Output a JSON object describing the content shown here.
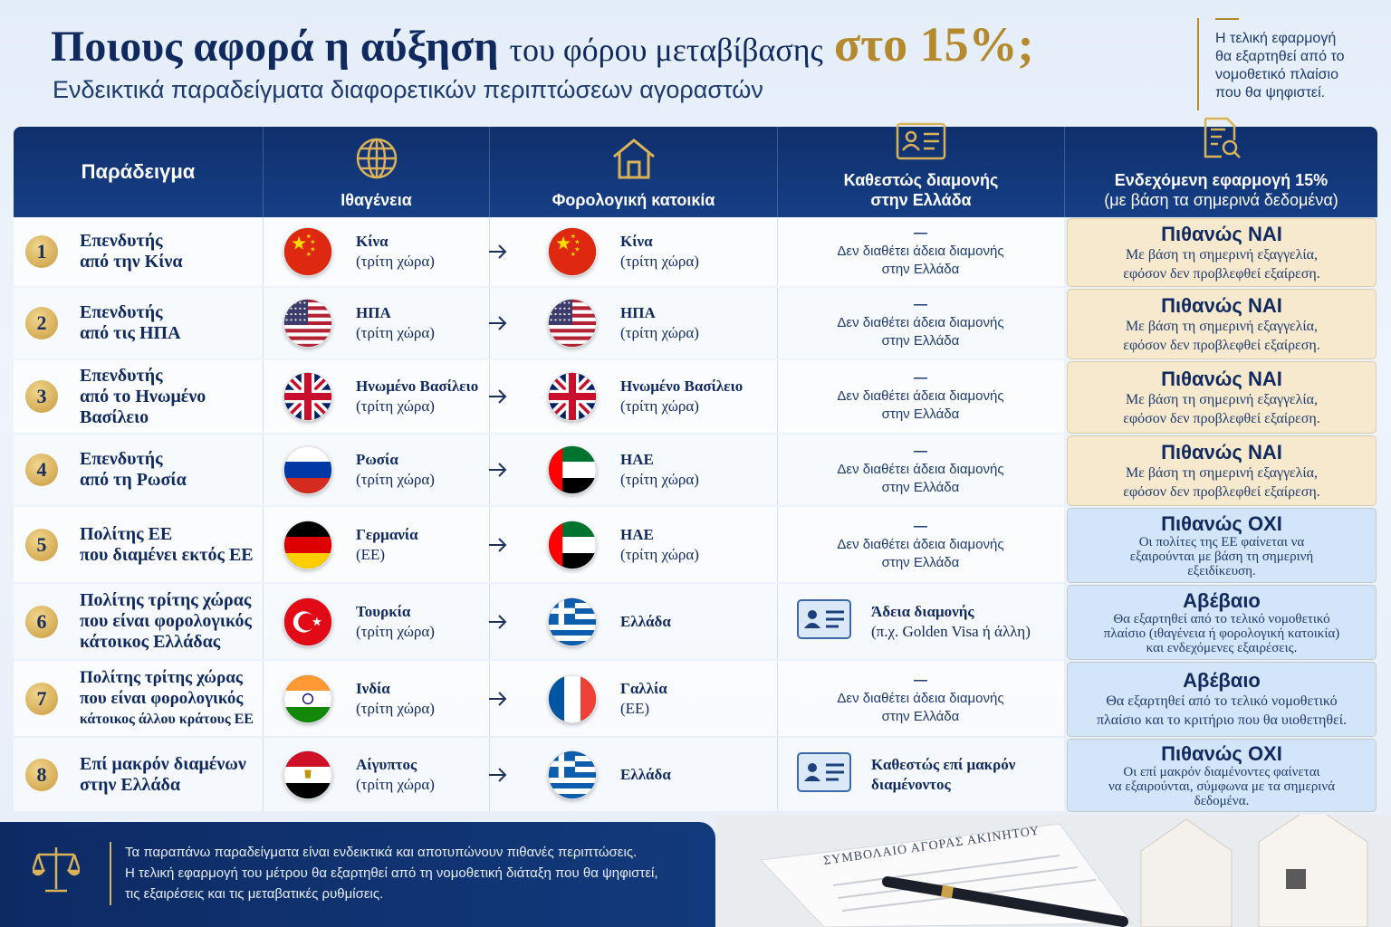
{
  "header": {
    "title_parts": [
      "Ποιους αφορά η αύξηση",
      "του φόρου μεταβίβασης",
      "στο 15%;"
    ],
    "subtitle": "Ενδεικτικά παραδείγματα διαφορετικών περιπτώσεων αγοραστών",
    "note": [
      "Η τελική εφαρμογή",
      "θα εξαρτηθεί από το",
      "νομοθετικό πλαίσιο",
      "που θα ψηφιστεί."
    ]
  },
  "table": {
    "columns": [
      [
        "Παράδειγμα"
      ],
      [
        "Ιθαγένεια"
      ],
      [
        "Φορολογική κατοικία"
      ],
      [
        "Καθεστώς διαμονής",
        "στην Ελλάδα"
      ],
      [
        "Ενδεχόμενη εφαρμογή 15%",
        "(με βάση τα σημερινά δεδομένα)"
      ]
    ],
    "rows": [
      {
        "number": 1,
        "example": [
          "Επενδυτής",
          "από την Κίνα"
        ],
        "nationality": {
          "country": "Κίνα",
          "status": "(τρίτη χώρα)"
        },
        "tax_residence": {
          "country": "Κίνα",
          "status": "(τρίτη χώρα)"
        },
        "residency": {
          "dash": "—",
          "text": [
            "Δεν διαθέτει άδεια διαμονής",
            "στην Ελλάδα"
          ]
        },
        "outcome": {
          "verdict": "Πιθανώς ΝΑΙ",
          "text": [
            "Με βάση τη σημερινή εξαγγελία,",
            "εφόσον δεν προβλεφθεί εξαίρεση."
          ],
          "color": "#f6e9cd"
        }
      },
      {
        "number": 2,
        "example": [
          "Επενδυτής",
          "από τις ΗΠΑ"
        ],
        "nationality": {
          "country": "ΗΠΑ",
          "status": "(τρίτη χώρα)"
        },
        "tax_residence": {
          "country": "ΗΠΑ",
          "status": "(τρίτη χώρα)"
        },
        "residency": {
          "dash": "—",
          "text": [
            "Δεν διαθέτει άδεια διαμονής",
            "στην Ελλάδα"
          ]
        },
        "outcome": {
          "verdict": "Πιθανώς ΝΑΙ",
          "text": [
            "Με βάση τη σημερινή εξαγγελία,",
            "εφόσον δεν προβλεφθεί εξαίρεση."
          ],
          "color": "#f6e9cd"
        }
      },
      {
        "number": 3,
        "example": [
          "Επενδυτής",
          "από το Ηνωμένο",
          "Βασίλειο"
        ],
        "nationality": {
          "country": "Ηνωμένο Βασίλειο",
          "status": "(τρίτη χώρα)"
        },
        "tax_residence": {
          "country": "Ηνωμένο Βασίλειο",
          "status": "(τρίτη χώρα)"
        },
        "residency": {
          "dash": "—",
          "text": [
            "Δεν διαθέτει άδεια διαμονής",
            "στην Ελλάδα"
          ]
        },
        "outcome": {
          "verdict": "Πιθανώς ΝΑΙ",
          "text": [
            "Με βάση τη σημερινή εξαγγελία,",
            "εφόσον δεν προβλεφθεί εξαίρεση."
          ],
          "color": "#f6e9cd"
        }
      },
      {
        "number": 4,
        "example": [
          "Επενδυτής",
          "από τη Ρωσία"
        ],
        "nationality": {
          "country": "Ρωσία",
          "status": "(τρίτη χώρα)"
        },
        "tax_residence": {
          "country": "ΗΑΕ",
          "status": "(τρίτη χώρα)"
        },
        "residency": {
          "dash": "—",
          "text": [
            "Δεν διαθέτει άδεια διαμονής",
            "στην Ελλάδα"
          ]
        },
        "outcome": {
          "verdict": "Πιθανώς ΝΑΙ",
          "text": [
            "Με βάση τη σημερινή εξαγγελία,",
            "εφόσον δεν προβλεφθεί εξαίρεση."
          ],
          "color": "#f6e9cd"
        }
      },
      {
        "number": 5,
        "example": [
          "Πολίτης ΕΕ",
          "που διαμένει εκτός ΕΕ"
        ],
        "nationality": {
          "country": "Γερμανία",
          "status": "(ΕΕ)"
        },
        "tax_residence": {
          "country": "ΗΑΕ",
          "status": "(τρίτη χώρα)"
        },
        "residency": {
          "dash": "—",
          "text": [
            "Δεν διαθέτει άδεια διαμονής",
            "στην Ελλάδα"
          ]
        },
        "outcome": {
          "verdict": "Πιθανώς ΟΧΙ",
          "text": [
            "Οι πολίτες της ΕΕ φαίνεται να",
            "εξαιρούνται με βάση τη σημερινή",
            "εξειδίκευση."
          ],
          "color": "#d3e5f8"
        }
      },
      {
        "number": 6,
        "example": [
          "Πολίτης τρίτης χώρας",
          "που είναι φορολογικός",
          "κάτοικος Ελλάδας"
        ],
        "nationality": {
          "country": "Τουρκία",
          "status": "(τρίτη χώρα)"
        },
        "tax_residence": {
          "country": "Ελλάδα"
        },
        "residency": {
          "text": [
            "Άδεια διαμονής",
            "(π.χ. Golden Visa ή άλλη)"
          ]
        },
        "outcome": {
          "verdict": "Αβέβαιο",
          "text": [
            "Θα εξαρτηθεί από το τελικό νομοθετικό",
            "πλαίσιο (ιθαγένεια ή φορολογική κατοικία)",
            "και ενδεχόμενες εξαιρέσεις."
          ],
          "color": "#d3e5f8"
        }
      },
      {
        "number": 7,
        "example": [
          "Πολίτης τρίτης χώρας",
          "που είναι φορολογικός",
          "κάτοικος άλλου κράτους ΕΕ"
        ],
        "nationality": {
          "country": "Ινδία",
          "status": "(τρίτη χώρα)"
        },
        "tax_residence": {
          "country": "Γαλλία",
          "status": "(ΕΕ)"
        },
        "residency": {
          "dash": "—",
          "text": [
            "Δεν διαθέτει άδεια διαμονής",
            "στην Ελλάδα"
          ]
        },
        "outcome": {
          "verdict": "Αβέβαιο",
          "text": [
            "Θα εξαρτηθεί από το τελικό νομοθετικό",
            "πλαίσιο και το κριτήριο που θα υιοθετηθεί."
          ],
          "color": "#d3e5f8"
        }
      },
      {
        "number": 8,
        "example": [
          "Επί μακρόν διαμένων",
          "στην Ελλάδα"
        ],
        "nationality": {
          "country": "Αίγυπτος",
          "status": "(τρίτη χώρα)"
        },
        "tax_residence": {
          "country": "Ελλάδα"
        },
        "residency": {
          "text": [
            "Καθεστώς επί μακρόν",
            "διαμένοντος"
          ]
        },
        "outcome": {
          "verdict": "Πιθανώς ΟΧΙ",
          "text": [
            "Οι επί μακρόν διαμένοντες φαίνεται",
            "να εξαιρούνται, σύμφωνα με τα σημερινά",
            "δεδομένα."
          ],
          "color": "#d3e5f8"
        }
      }
    ]
  },
  "footer": {
    "lines": [
      "Τα παραπάνω παραδείγματα είναι ενδεικτικά και αποτυπώνουν πιθανές περιπτώσεις.",
      "Η τελική εφαρμογή του μέτρου θα εξαρτηθεί από τη νομοθετική διάταξη που θα ψηφιστεί,",
      "τις εξαιρέσεις και τις μεταβατικές ρυθμίσεις."
    ],
    "document_title": "ΣΥΜΒΟΛΑΙΟ ΑΓΟΡΑΣ ΑΚΙΝΗΤΟΥ"
  }
}
